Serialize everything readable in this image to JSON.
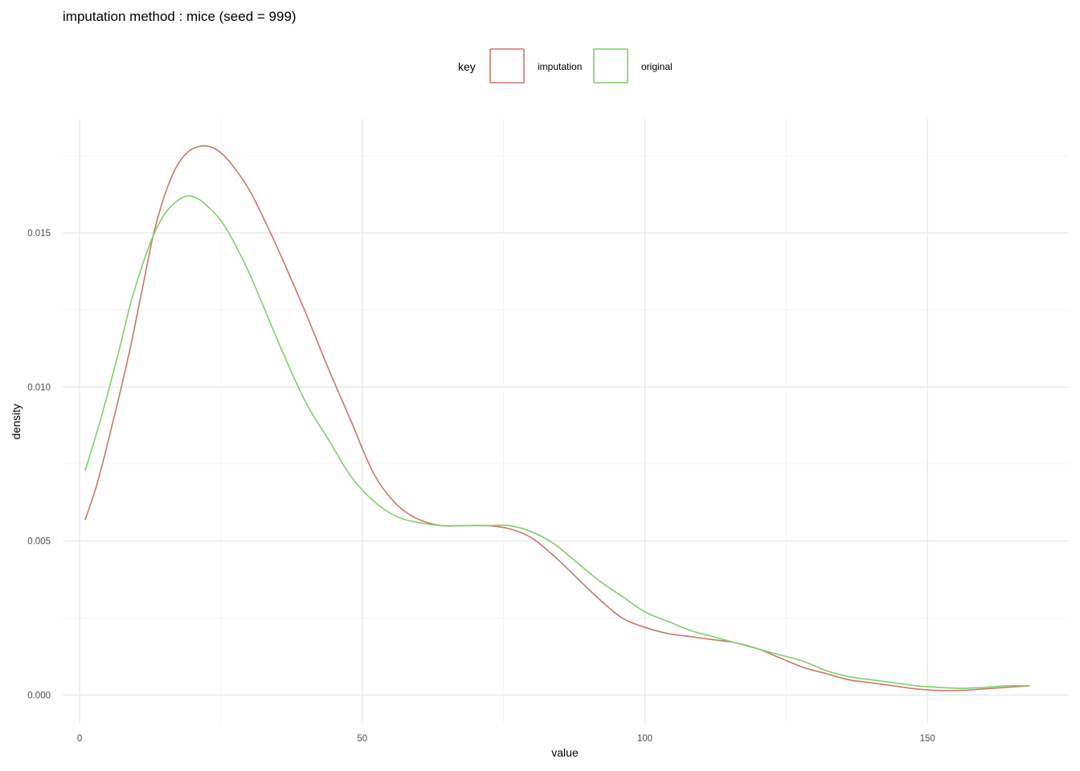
{
  "chart_data": {
    "type": "line",
    "title": "imputation method : mice (seed = 999)",
    "xlabel": "value",
    "ylabel": "density",
    "xlim": [
      -3,
      175
    ],
    "ylim": [
      -0.0009,
      0.0187
    ],
    "x_ticks": [
      0,
      50,
      100,
      150
    ],
    "x_tick_labels": [
      "0",
      "50",
      "100",
      "150"
    ],
    "y_ticks": [
      0.0,
      0.005,
      0.01,
      0.015
    ],
    "y_tick_labels": [
      "0.000",
      "0.005",
      "0.010",
      "0.015"
    ],
    "grid": true,
    "legend": {
      "title": "key",
      "position": "top",
      "entries": [
        "imputation",
        "original"
      ]
    },
    "series": [
      {
        "name": "imputation",
        "color": "#c9776a",
        "x": [
          1,
          3,
          5,
          7,
          9,
          11,
          13,
          15,
          17,
          19,
          21,
          23,
          25,
          27,
          30,
          33,
          36,
          40,
          44,
          48,
          52,
          56,
          60,
          64,
          68,
          72,
          76,
          80,
          84,
          88,
          92,
          96,
          100,
          104,
          108,
          112,
          116,
          120,
          124,
          128,
          132,
          136,
          140,
          144,
          148,
          152,
          156,
          160,
          164,
          168
        ],
        "y": [
          0.0057,
          0.0068,
          0.0082,
          0.0097,
          0.0113,
          0.0131,
          0.0149,
          0.0162,
          0.0171,
          0.0176,
          0.0178,
          0.0178,
          0.0176,
          0.0172,
          0.0164,
          0.0153,
          0.0141,
          0.0124,
          0.0106,
          0.0089,
          0.0072,
          0.0062,
          0.0057,
          0.0055,
          0.0055,
          0.0055,
          0.0054,
          0.0051,
          0.0045,
          0.0038,
          0.0031,
          0.0025,
          0.0022,
          0.002,
          0.0019,
          0.0018,
          0.0017,
          0.0015,
          0.0012,
          0.0009,
          0.0007,
          0.0005,
          0.0004,
          0.0003,
          0.0002,
          0.00015,
          0.00015,
          0.0002,
          0.00025,
          0.0003
        ]
      },
      {
        "name": "original",
        "color": "#7fcf6a",
        "x": [
          1,
          3,
          5,
          7,
          9,
          11,
          13,
          15,
          17,
          19,
          21,
          23,
          25,
          27,
          30,
          33,
          36,
          40,
          44,
          48,
          52,
          56,
          60,
          64,
          68,
          72,
          76,
          80,
          84,
          88,
          92,
          96,
          100,
          104,
          108,
          112,
          116,
          120,
          124,
          128,
          132,
          136,
          140,
          144,
          148,
          152,
          156,
          160,
          164,
          168
        ],
        "y": [
          0.0073,
          0.0085,
          0.0098,
          0.0112,
          0.0127,
          0.0139,
          0.0149,
          0.0156,
          0.016,
          0.0162,
          0.0161,
          0.0158,
          0.0154,
          0.0148,
          0.0137,
          0.0124,
          0.0111,
          0.0095,
          0.0083,
          0.0071,
          0.0063,
          0.0058,
          0.0056,
          0.0055,
          0.0055,
          0.0055,
          0.0055,
          0.0053,
          0.0049,
          0.0043,
          0.0037,
          0.0032,
          0.0027,
          0.0024,
          0.0021,
          0.0019,
          0.0017,
          0.0015,
          0.0013,
          0.0011,
          0.0008,
          0.0006,
          0.0005,
          0.0004,
          0.0003,
          0.00025,
          0.00022,
          0.00025,
          0.0003,
          0.0003
        ]
      }
    ]
  }
}
